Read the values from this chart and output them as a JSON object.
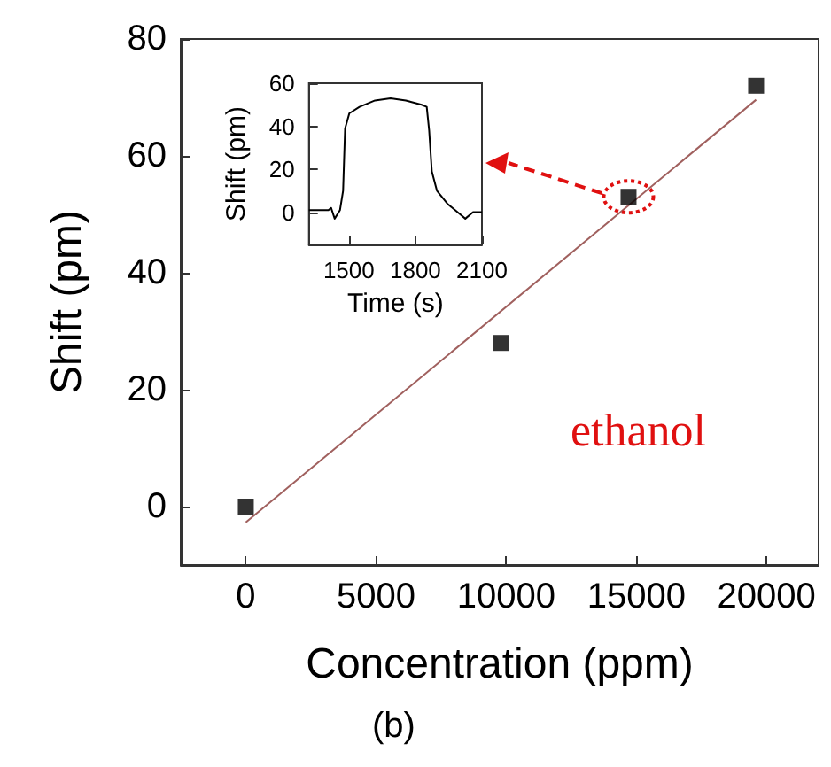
{
  "chart_data": [
    {
      "type": "scatter",
      "xlabel": "Concentration (ppm)",
      "ylabel": "Shift (pm)",
      "xlim": [
        -2500,
        22000
      ],
      "xticks": [
        0,
        5000,
        10000,
        15000,
        20000
      ],
      "ylim": [
        -10,
        80
      ],
      "yticks": [
        0,
        20,
        40,
        60,
        80
      ],
      "annotations": [
        "ethanol",
        "(b)"
      ],
      "series": [
        {
          "marker": "square",
          "color": "#000000",
          "x": [
            0,
            9800,
            14700,
            19600
          ],
          "values": [
            0,
            28,
            53,
            72
          ]
        },
        {
          "type": "line",
          "marker": "none",
          "color": "#a0605e",
          "x": [
            0,
            19600
          ],
          "values": [
            -2.7,
            69.6
          ]
        }
      ]
    },
    {
      "type": "line",
      "xlabel": "Time (s)",
      "ylabel": "Shift (pm)",
      "xlim": [
        1320,
        2100
      ],
      "xticks": [
        1500,
        1800,
        2100
      ],
      "ylim": [
        -15,
        60
      ],
      "yticks": [
        0,
        20,
        40,
        60
      ],
      "series": [
        {
          "color": "#000000",
          "x": [
            1320,
            1408,
            1420,
            1436,
            1460,
            1474,
            1483,
            1502,
            1548,
            1618,
            1688,
            1757,
            1828,
            1851,
            1862,
            1874,
            1897,
            1944,
            2002,
            2025,
            2060,
            2100
          ],
          "values": [
            1,
            1,
            2,
            -3,
            1,
            10,
            39,
            46,
            49,
            52,
            53,
            52,
            50,
            49,
            38,
            19,
            10,
            4,
            -1,
            -3,
            0,
            0
          ]
        }
      ]
    }
  ]
}
